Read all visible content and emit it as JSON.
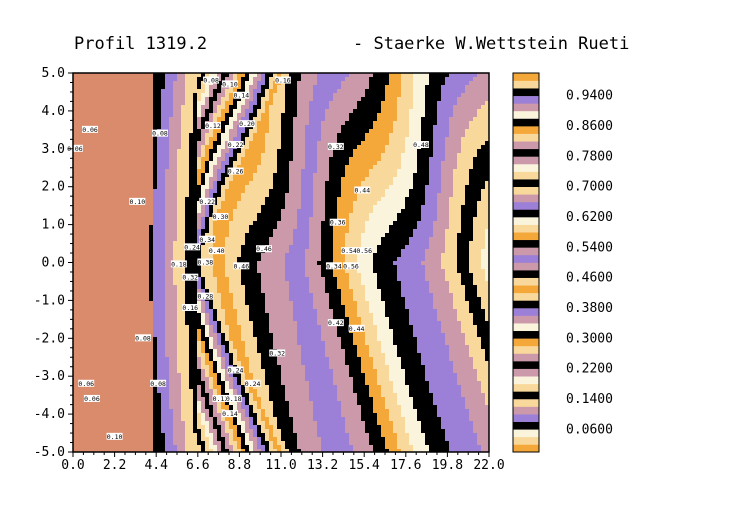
{
  "chart_data": {
    "type": "contour",
    "title": {
      "left": "Profil  1319.2",
      "right": "- Staerke   W.Wettstein Rueti"
    },
    "xlim": [
      0.0,
      22.0
    ],
    "ylim": [
      -5.0,
      5.0
    ],
    "x_ticks": [
      "0.0",
      "2.2",
      "4.4",
      "6.6",
      "8.8",
      "11.0",
      "13.2",
      "15.4",
      "17.6",
      "19.8",
      "22.0"
    ],
    "y_ticks": [
      "5.0",
      "4.0",
      "3.0",
      "2.0",
      "1.0",
      "0.0",
      "-1.0",
      "-2.0",
      "-3.0",
      "-4.0",
      "-5.0"
    ],
    "colorbar": {
      "range": [
        0.0,
        1.0
      ],
      "step": 0.02,
      "labels": [
        "0.9400",
        "0.8600",
        "0.7800",
        "0.7000",
        "0.6200",
        "0.5400",
        "0.4600",
        "0.3800",
        "0.3000",
        "0.2200",
        "0.1400",
        "0.0600"
      ]
    },
    "palette": [
      "#d98b6c",
      "#f9d99b",
      "#faf4dc",
      "#f5a83a",
      "#cc99aa",
      "#9c7fd6",
      "#000000"
    ],
    "contour_labels": [
      {
        "text": "0.06",
        "x": 0.9,
        "y": 3.5
      },
      {
        "text": "0.06",
        "x": 0.1,
        "y": 3.0
      },
      {
        "text": "0.08",
        "x": 4.6,
        "y": 3.4
      },
      {
        "text": "0.10",
        "x": 3.4,
        "y": 1.6
      },
      {
        "text": "0.08",
        "x": 3.7,
        "y": -2.0
      },
      {
        "text": "0.06",
        "x": 0.7,
        "y": -3.2
      },
      {
        "text": "0.08",
        "x": 4.5,
        "y": -3.2
      },
      {
        "text": "0.06",
        "x": 1.0,
        "y": -3.6
      },
      {
        "text": "0.10",
        "x": 2.2,
        "y": -4.6
      },
      {
        "text": "0.08",
        "x": 7.3,
        "y": 4.8
      },
      {
        "text": "0.10",
        "x": 8.3,
        "y": 4.7
      },
      {
        "text": "0.14",
        "x": 8.9,
        "y": 4.4
      },
      {
        "text": "0.16",
        "x": 11.1,
        "y": 4.8
      },
      {
        "text": "0.12",
        "x": 7.4,
        "y": 3.6
      },
      {
        "text": "0.20",
        "x": 9.2,
        "y": 3.65
      },
      {
        "text": "0.22",
        "x": 8.6,
        "y": 3.1
      },
      {
        "text": "0.26",
        "x": 8.6,
        "y": 2.4
      },
      {
        "text": "0.32",
        "x": 13.9,
        "y": 3.05
      },
      {
        "text": "0.48",
        "x": 18.4,
        "y": 3.1
      },
      {
        "text": "0.44",
        "x": 15.3,
        "y": 1.9
      },
      {
        "text": "0.22",
        "x": 7.1,
        "y": 1.6
      },
      {
        "text": "0.30",
        "x": 7.8,
        "y": 1.2
      },
      {
        "text": "0.36",
        "x": 14.0,
        "y": 1.05
      },
      {
        "text": "0.34",
        "x": 7.1,
        "y": 0.6
      },
      {
        "text": "0.24",
        "x": 6.3,
        "y": 0.4
      },
      {
        "text": "0.40",
        "x": 7.6,
        "y": 0.3
      },
      {
        "text": "0.46",
        "x": 10.1,
        "y": 0.35
      },
      {
        "text": "0.54",
        "x": 14.6,
        "y": 0.3
      },
      {
        "text": "0.56",
        "x": 15.4,
        "y": 0.3
      },
      {
        "text": "0.18",
        "x": 5.6,
        "y": -0.05
      },
      {
        "text": "0.38",
        "x": 7.0,
        "y": 0.0
      },
      {
        "text": "0.46",
        "x": 8.9,
        "y": -0.1
      },
      {
        "text": "0.34",
        "x": 13.8,
        "y": -0.1
      },
      {
        "text": "0.56",
        "x": 14.7,
        "y": -0.1
      },
      {
        "text": "0.32",
        "x": 6.2,
        "y": -0.4
      },
      {
        "text": "0.28",
        "x": 7.0,
        "y": -0.9
      },
      {
        "text": "0.16",
        "x": 6.2,
        "y": -1.2
      },
      {
        "text": "0.42",
        "x": 13.9,
        "y": -1.6
      },
      {
        "text": "0.44",
        "x": 15.0,
        "y": -1.75
      },
      {
        "text": "0.32",
        "x": 10.8,
        "y": -2.4
      },
      {
        "text": "0.24",
        "x": 8.6,
        "y": -2.85
      },
      {
        "text": "0.24",
        "x": 9.5,
        "y": -3.2
      },
      {
        "text": "0.12",
        "x": 7.8,
        "y": -3.6
      },
      {
        "text": "0.18",
        "x": 8.5,
        "y": -3.6
      },
      {
        "text": "0.14",
        "x": 8.3,
        "y": -4.0
      }
    ]
  }
}
